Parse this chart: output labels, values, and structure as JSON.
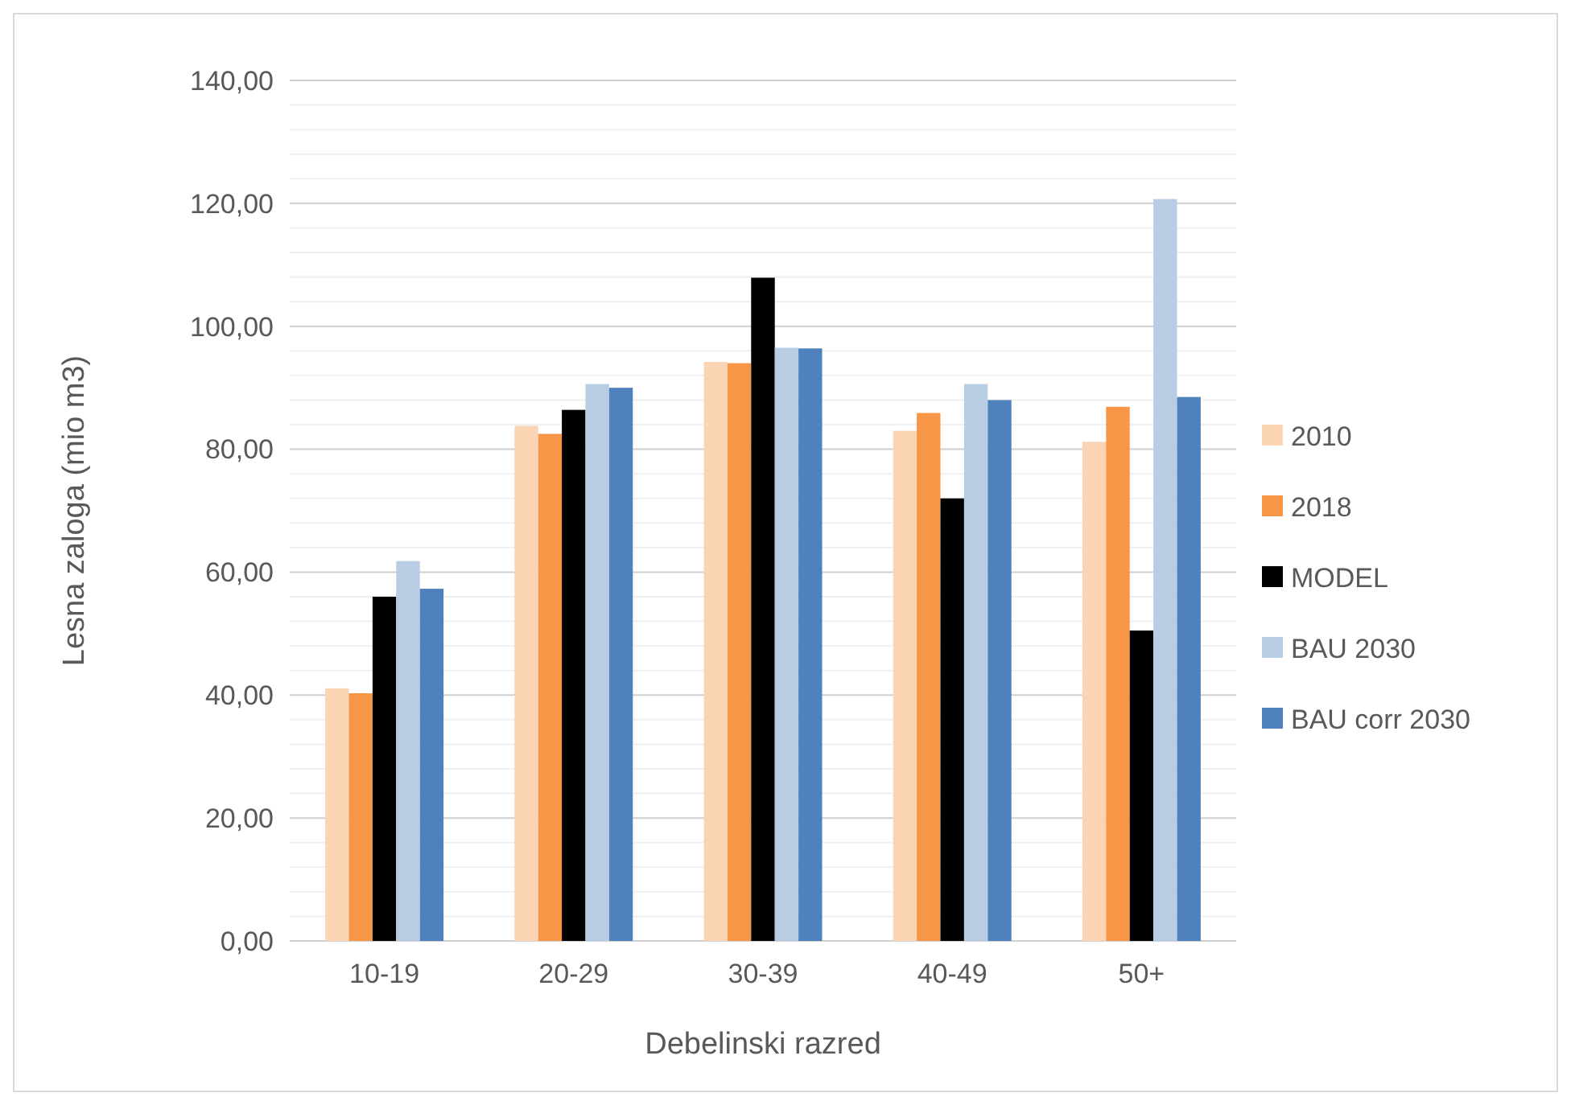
{
  "chart_data": {
    "type": "bar",
    "xlabel": "Debelinski razred",
    "ylabel": "Lesna zaloga (mio m3)",
    "categories": [
      "10-19",
      "20-29",
      "30-39",
      "40-49",
      "50+"
    ],
    "series": [
      {
        "name": "2010",
        "color": "#fbd4b4",
        "values": [
          41.1,
          83.8,
          94.2,
          83,
          81.2
        ]
      },
      {
        "name": "2018",
        "color": "#f79646",
        "values": [
          40.3,
          82.5,
          94,
          85.9,
          86.9
        ]
      },
      {
        "name": "MODEL",
        "color": "#000000",
        "values": [
          56,
          86.4,
          107.9,
          72,
          50.5
        ]
      },
      {
        "name": "BAU 2030",
        "color": "#b8cce4",
        "values": [
          61.8,
          90.6,
          96.5,
          90.6,
          120.7
        ]
      },
      {
        "name": "BAU corr 2030",
        "color": "#4f81bd",
        "values": [
          57.3,
          90,
          96.4,
          88,
          88.5
        ]
      }
    ],
    "ylim": [
      0,
      140
    ],
    "yticks": [
      {
        "value": 0,
        "label": "0,00"
      },
      {
        "value": 4,
        "label": null
      },
      {
        "value": 8,
        "label": null
      },
      {
        "value": 12,
        "label": null
      },
      {
        "value": 16,
        "label": null
      },
      {
        "value": 20,
        "label": "20,00"
      },
      {
        "value": 24,
        "label": null
      },
      {
        "value": 28,
        "label": null
      },
      {
        "value": 32,
        "label": null
      },
      {
        "value": 36,
        "label": null
      },
      {
        "value": 40,
        "label": "40,00"
      },
      {
        "value": 44,
        "label": null
      },
      {
        "value": 48,
        "label": null
      },
      {
        "value": 52,
        "label": null
      },
      {
        "value": 56,
        "label": null
      },
      {
        "value": 60,
        "label": "60,00"
      },
      {
        "value": 64,
        "label": null
      },
      {
        "value": 68,
        "label": null
      },
      {
        "value": 72,
        "label": null
      },
      {
        "value": 76,
        "label": null
      },
      {
        "value": 80,
        "label": "80,00"
      },
      {
        "value": 84,
        "label": null
      },
      {
        "value": 88,
        "label": null
      },
      {
        "value": 92,
        "label": null
      },
      {
        "value": 96,
        "label": null
      },
      {
        "value": 100,
        "label": "100,00"
      },
      {
        "value": 104,
        "label": null
      },
      {
        "value": 108,
        "label": null
      },
      {
        "value": 112,
        "label": null
      },
      {
        "value": 116,
        "label": null
      },
      {
        "value": 120,
        "label": "120,00"
      },
      {
        "value": 124,
        "label": null
      },
      {
        "value": 128,
        "label": null
      },
      {
        "value": 132,
        "label": null
      },
      {
        "value": 136,
        "label": null
      },
      {
        "value": 140,
        "label": "140,00"
      }
    ],
    "grid": true,
    "legend": "right"
  }
}
